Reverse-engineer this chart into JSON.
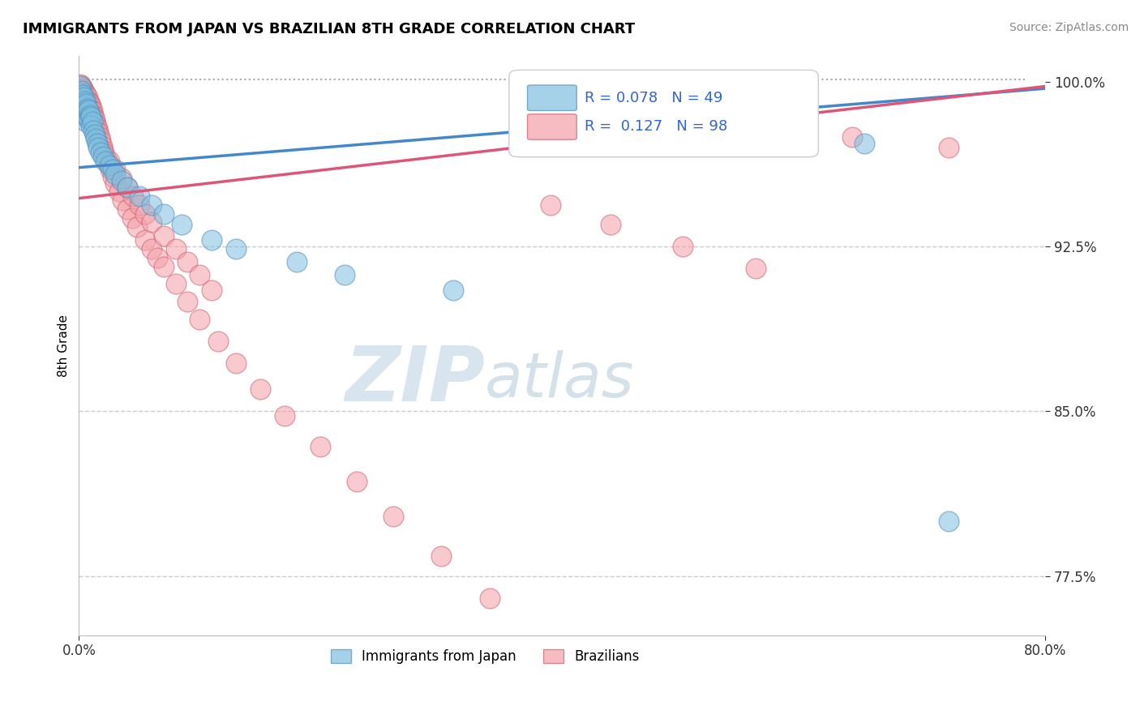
{
  "title": "IMMIGRANTS FROM JAPAN VS BRAZILIAN 8TH GRADE CORRELATION CHART",
  "source": "Source: ZipAtlas.com",
  "xlabel_japan": "Immigrants from Japan",
  "xlabel_brazilian": "Brazilians",
  "ylabel": "8th Grade",
  "xmin": 0.0,
  "xmax": 0.8,
  "ymin": 0.748,
  "ymax": 1.012,
  "yticks": [
    0.775,
    0.85,
    0.925,
    1.0
  ],
  "ytick_labels": [
    "77.5%",
    "85.0%",
    "92.5%",
    "100.0%"
  ],
  "xtick_labels": [
    "0.0%",
    "80.0%"
  ],
  "xtick_vals": [
    0.0,
    0.8
  ],
  "legend_R_japan": "0.078",
  "legend_N_japan": "49",
  "legend_R_brazil": "0.127",
  "legend_N_brazil": "98",
  "japan_color": "#7fbfdf",
  "brazil_color": "#f4a0a8",
  "japan_edge_color": "#5090c0",
  "brazil_edge_color": "#d06070",
  "japan_line_color": "#4488cc",
  "brazil_line_color": "#dd5577",
  "watermark_zip_color": "#c8d8e8",
  "watermark_atlas_color": "#b0c8e0",
  "japan_trend_x": [
    0.0,
    0.8
  ],
  "japan_trend_y": [
    0.961,
    0.997
  ],
  "brazil_trend_x": [
    0.0,
    0.8
  ],
  "brazil_trend_y": [
    0.947,
    0.998
  ],
  "dotted_line_y": 1.001,
  "japan_scatter_x": [
    0.001,
    0.001,
    0.002,
    0.002,
    0.002,
    0.003,
    0.003,
    0.003,
    0.004,
    0.004,
    0.004,
    0.005,
    0.005,
    0.006,
    0.006,
    0.006,
    0.007,
    0.007,
    0.008,
    0.008,
    0.009,
    0.01,
    0.01,
    0.011,
    0.012,
    0.013,
    0.014,
    0.015,
    0.016,
    0.018,
    0.02,
    0.022,
    0.025,
    0.028,
    0.03,
    0.035,
    0.04,
    0.05,
    0.06,
    0.07,
    0.085,
    0.11,
    0.13,
    0.18,
    0.22,
    0.31,
    0.55,
    0.65,
    0.72
  ],
  "japan_scatter_y": [
    0.998,
    0.995,
    0.996,
    0.992,
    0.988,
    0.994,
    0.99,
    0.986,
    0.993,
    0.989,
    0.985,
    0.991,
    0.987,
    0.99,
    0.986,
    0.982,
    0.988,
    0.984,
    0.987,
    0.983,
    0.985,
    0.984,
    0.98,
    0.982,
    0.978,
    0.976,
    0.974,
    0.972,
    0.97,
    0.968,
    0.966,
    0.964,
    0.962,
    0.96,
    0.958,
    0.955,
    0.952,
    0.948,
    0.944,
    0.94,
    0.935,
    0.928,
    0.924,
    0.918,
    0.912,
    0.905,
    0.975,
    0.972,
    0.8
  ],
  "brazil_scatter_x": [
    0.001,
    0.001,
    0.001,
    0.002,
    0.002,
    0.002,
    0.002,
    0.003,
    0.003,
    0.003,
    0.003,
    0.003,
    0.004,
    0.004,
    0.004,
    0.004,
    0.005,
    0.005,
    0.005,
    0.005,
    0.005,
    0.006,
    0.006,
    0.006,
    0.006,
    0.007,
    0.007,
    0.007,
    0.008,
    0.008,
    0.008,
    0.009,
    0.009,
    0.009,
    0.01,
    0.01,
    0.01,
    0.011,
    0.011,
    0.012,
    0.012,
    0.013,
    0.013,
    0.014,
    0.014,
    0.015,
    0.015,
    0.016,
    0.017,
    0.018,
    0.019,
    0.02,
    0.022,
    0.024,
    0.026,
    0.028,
    0.03,
    0.033,
    0.036,
    0.04,
    0.044,
    0.048,
    0.055,
    0.06,
    0.065,
    0.07,
    0.08,
    0.09,
    0.1,
    0.115,
    0.13,
    0.15,
    0.17,
    0.2,
    0.23,
    0.26,
    0.3,
    0.34,
    0.39,
    0.44,
    0.5,
    0.56,
    0.02,
    0.025,
    0.03,
    0.035,
    0.04,
    0.045,
    0.05,
    0.055,
    0.06,
    0.07,
    0.08,
    0.09,
    0.1,
    0.11,
    0.64,
    0.72
  ],
  "brazil_scatter_y": [
    0.999,
    0.997,
    0.995,
    0.998,
    0.996,
    0.994,
    0.992,
    0.997,
    0.995,
    0.993,
    0.991,
    0.989,
    0.996,
    0.994,
    0.992,
    0.99,
    0.995,
    0.993,
    0.991,
    0.989,
    0.987,
    0.994,
    0.992,
    0.99,
    0.988,
    0.993,
    0.991,
    0.989,
    0.991,
    0.989,
    0.987,
    0.99,
    0.988,
    0.986,
    0.989,
    0.987,
    0.985,
    0.987,
    0.985,
    0.985,
    0.983,
    0.983,
    0.981,
    0.981,
    0.979,
    0.979,
    0.977,
    0.977,
    0.975,
    0.973,
    0.971,
    0.969,
    0.966,
    0.963,
    0.96,
    0.957,
    0.954,
    0.95,
    0.946,
    0.942,
    0.938,
    0.934,
    0.928,
    0.924,
    0.92,
    0.916,
    0.908,
    0.9,
    0.892,
    0.882,
    0.872,
    0.86,
    0.848,
    0.834,
    0.818,
    0.802,
    0.784,
    0.765,
    0.944,
    0.935,
    0.925,
    0.915,
    0.968,
    0.964,
    0.96,
    0.956,
    0.952,
    0.948,
    0.944,
    0.94,
    0.936,
    0.93,
    0.924,
    0.918,
    0.912,
    0.905,
    0.975,
    0.97
  ]
}
